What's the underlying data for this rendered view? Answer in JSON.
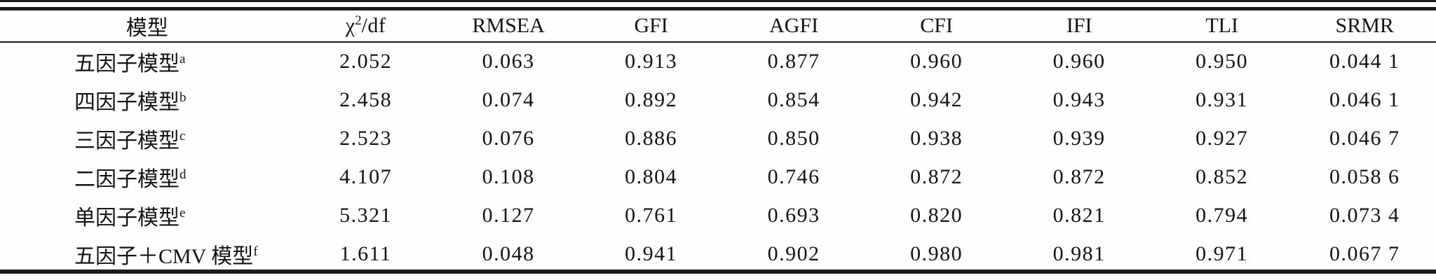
{
  "table": {
    "header": {
      "model": "模型",
      "chi": {
        "base": "χ",
        "sup": "2",
        "rest": "/df"
      },
      "cols": [
        "RMSEA",
        "GFI",
        "AGFI",
        "CFI",
        "IFI",
        "TLI",
        "SRMR"
      ]
    },
    "rows": [
      {
        "model": {
          "name": "五因子模型",
          "sup": "a"
        },
        "values": [
          "2.052",
          "0.063",
          "0.913",
          "0.877",
          "0.960",
          "0.960",
          "0.950",
          "0.044 1"
        ]
      },
      {
        "model": {
          "name": "四因子模型",
          "sup": "b"
        },
        "values": [
          "2.458",
          "0.074",
          "0.892",
          "0.854",
          "0.942",
          "0.943",
          "0.931",
          "0.046 1"
        ]
      },
      {
        "model": {
          "name": "三因子模型",
          "sup": "c"
        },
        "values": [
          "2.523",
          "0.076",
          "0.886",
          "0.850",
          "0.938",
          "0.939",
          "0.927",
          "0.046 7"
        ]
      },
      {
        "model": {
          "name": "二因子模型",
          "sup": "d"
        },
        "values": [
          "4.107",
          "0.108",
          "0.804",
          "0.746",
          "0.872",
          "0.872",
          "0.852",
          "0.058 6"
        ]
      },
      {
        "model": {
          "name": "单因子模型",
          "sup": "e"
        },
        "values": [
          "5.321",
          "0.127",
          "0.761",
          "0.693",
          "0.820",
          "0.821",
          "0.794",
          "0.073 4"
        ]
      },
      {
        "model": {
          "name": "五因子＋CMV 模型",
          "sup": "f"
        },
        "values": [
          "1.611",
          "0.048",
          "0.941",
          "0.902",
          "0.980",
          "0.981",
          "0.971",
          "0.067 7"
        ]
      }
    ],
    "colors": {
      "rule": "#1c1c1c",
      "text": "#141414",
      "background": "#fefefe"
    }
  }
}
